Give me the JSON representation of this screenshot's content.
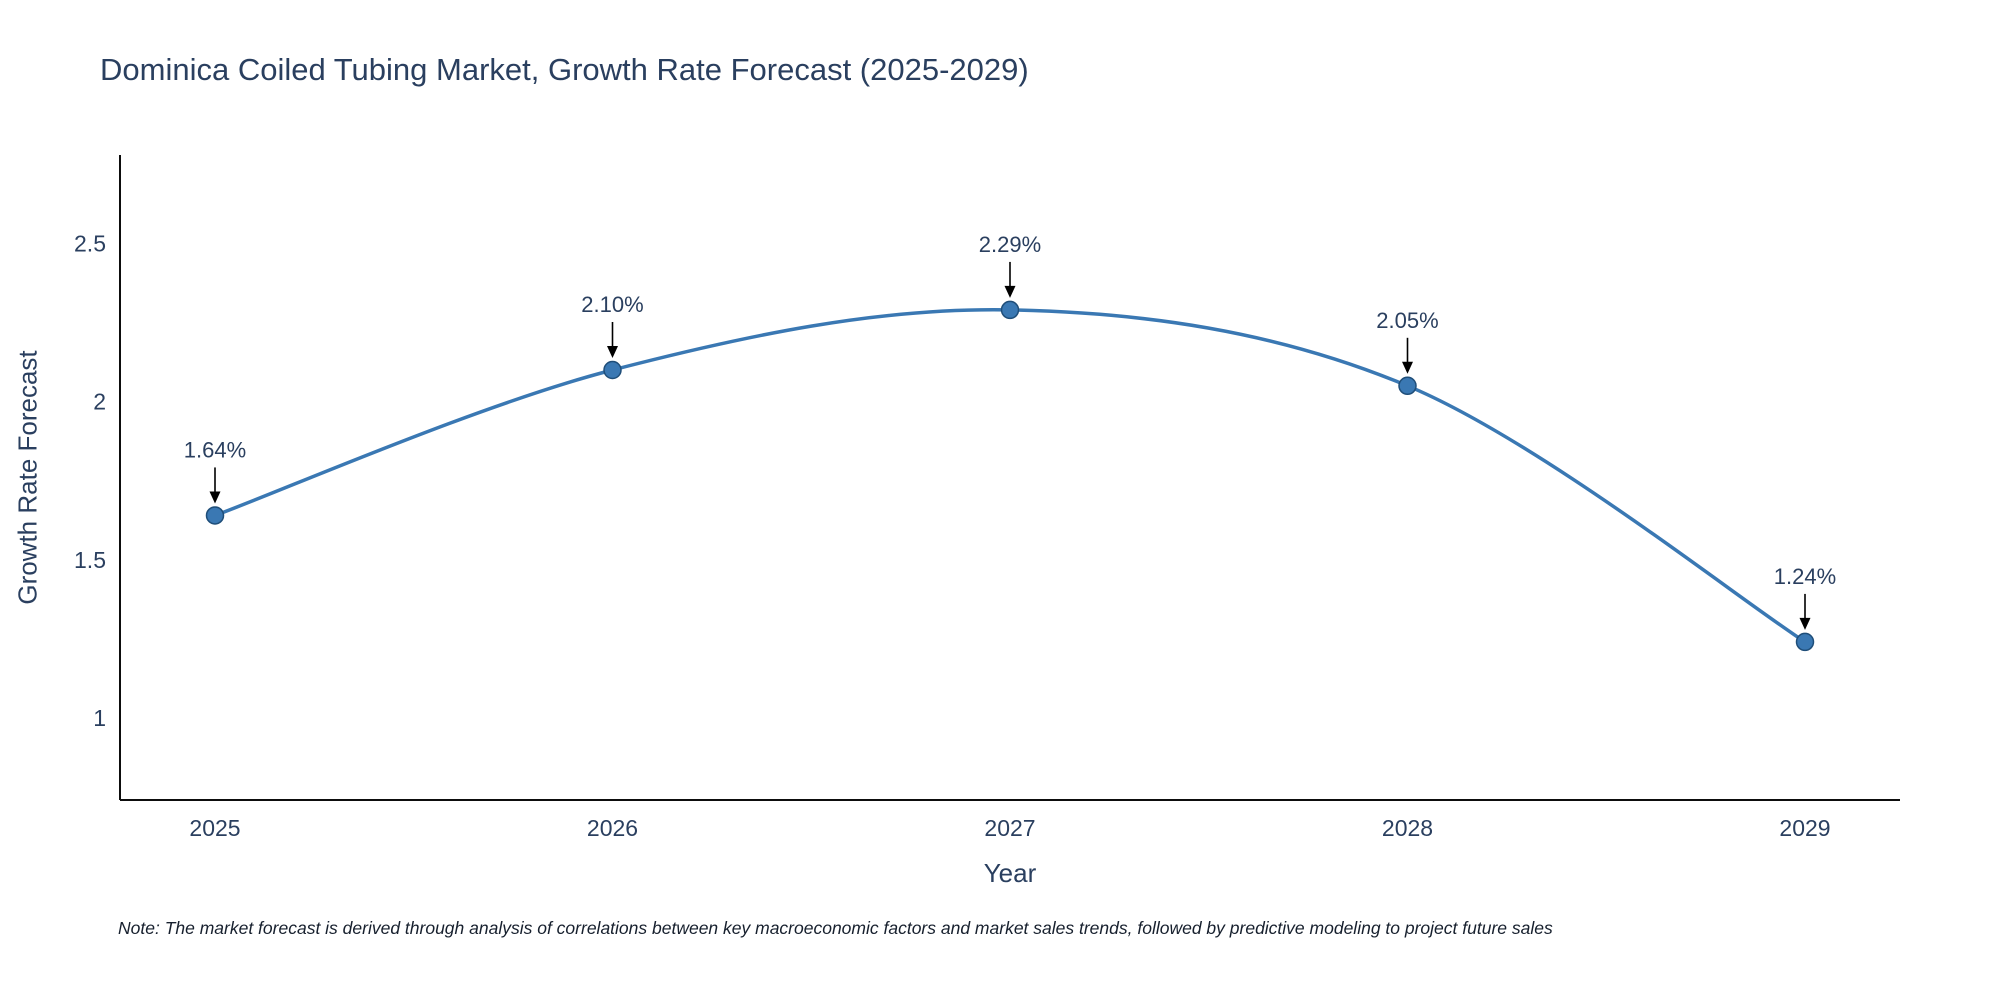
{
  "page": {
    "note": "Note: The market forecast is derived through analysis of correlations between key macroeconomic factors and market sales trends, followed by predictive modeling to project future sales"
  },
  "colors": {
    "line": "#3a78b3",
    "marker_fill": "#3a78b3",
    "marker_edge": "#1f4e79",
    "title_text": "#2a3f5f",
    "axis_text": "#2a3f5f",
    "axis_line": "#0d0d0d",
    "annotation_text": "#2a3f5f",
    "annotation_arrow": "#000000"
  },
  "chart_data": {
    "type": "line",
    "title": "Dominica Coiled Tubing Market, Growth Rate Forecast (2025-2029)",
    "xlabel": "Year",
    "ylabel": "Growth Rate Forecast",
    "x": [
      2025,
      2026,
      2027,
      2028,
      2029
    ],
    "values": [
      1.64,
      2.1,
      2.29,
      2.05,
      1.24
    ],
    "labels": [
      "1.64%",
      "2.10%",
      "2.29%",
      "2.05%",
      "1.24%"
    ],
    "yticks": [
      1,
      1.5,
      2,
      2.5
    ],
    "ytick_labels": [
      "1",
      "1.5",
      "2",
      "2.5"
    ],
    "ylim": [
      0.74,
      2.78
    ],
    "line_shape": "spline",
    "grid": false,
    "legend": "none"
  }
}
